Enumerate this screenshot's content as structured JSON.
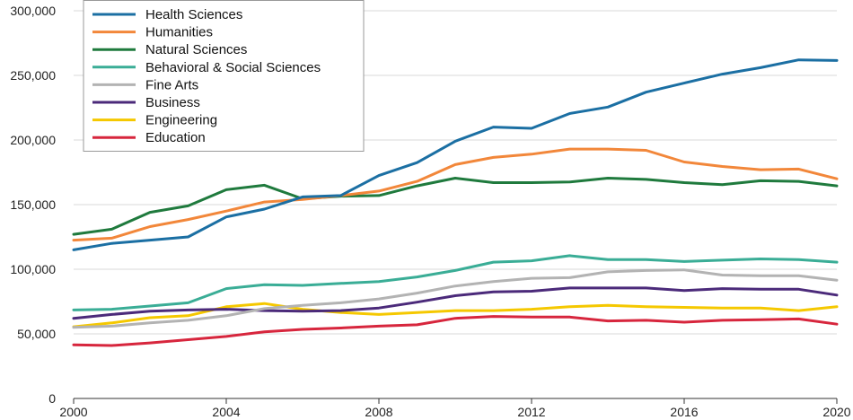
{
  "chart_data": {
    "type": "line",
    "title": "",
    "xlabel": "",
    "ylabel": "",
    "x": [
      2000,
      2001,
      2002,
      2003,
      2004,
      2005,
      2006,
      2007,
      2008,
      2009,
      2010,
      2011,
      2012,
      2013,
      2014,
      2015,
      2016,
      2017,
      2018,
      2019,
      2020
    ],
    "xlim": [
      2000,
      2020
    ],
    "ylim": [
      0,
      300000
    ],
    "x_ticks": [
      2000,
      2004,
      2008,
      2012,
      2016,
      2020
    ],
    "x_tick_labels": [
      "2000",
      "2004",
      "2008",
      "2012",
      "2016",
      "2020"
    ],
    "y_ticks": [
      0,
      50000,
      100000,
      150000,
      200000,
      250000,
      300000
    ],
    "y_tick_labels": [
      "0",
      "50,000",
      "100,000",
      "150,000",
      "200,000",
      "250,000",
      "300,000"
    ],
    "grid": "horizontal",
    "legend_position": "top-left",
    "series": [
      {
        "name": "Health Sciences",
        "color": "#1b6fa3",
        "values": [
          115000,
          120000,
          122500,
          125000,
          140500,
          146500,
          156000,
          157000,
          172500,
          182500,
          199000,
          210000,
          209000,
          220500,
          225500,
          237000,
          244000,
          251000,
          256000,
          262000,
          261500
        ]
      },
      {
        "name": "Humanities",
        "color": "#f2873a",
        "values": [
          122500,
          124000,
          133000,
          138500,
          145000,
          152000,
          154000,
          157000,
          160500,
          168000,
          181000,
          186500,
          189000,
          193000,
          193000,
          192000,
          183000,
          179500,
          177000,
          177500,
          170000
        ]
      },
      {
        "name": "Natural Sciences",
        "color": "#1f7a3d",
        "values": [
          127000,
          131000,
          144000,
          149000,
          161500,
          165000,
          154500,
          156500,
          157000,
          164500,
          170500,
          167000,
          167000,
          167500,
          170500,
          169500,
          167000,
          165500,
          168500,
          168000,
          164500
        ]
      },
      {
        "name": "Behavioral & Social Sciences",
        "color": "#3aad96",
        "values": [
          68500,
          69000,
          71500,
          74000,
          85000,
          88000,
          87500,
          89000,
          90500,
          94000,
          99000,
          105500,
          106500,
          110500,
          107500,
          107500,
          106000,
          107000,
          108000,
          107500,
          105500
        ]
      },
      {
        "name": "Fine Arts",
        "color": "#b3b3b3",
        "values": [
          55000,
          56000,
          58500,
          60500,
          64000,
          69500,
          72000,
          74000,
          77000,
          81500,
          87000,
          90500,
          93000,
          93500,
          98000,
          99000,
          99500,
          95500,
          95000,
          95000,
          91500
        ]
      },
      {
        "name": "Business",
        "color": "#4b2a7a",
        "values": [
          62000,
          65000,
          67500,
          68500,
          69000,
          68000,
          67500,
          68000,
          70000,
          74500,
          79500,
          82500,
          83000,
          85500,
          85500,
          85500,
          83500,
          85000,
          84500,
          84500,
          80000
        ]
      },
      {
        "name": "Engineering",
        "color": "#f5c800",
        "values": [
          55500,
          58500,
          62500,
          64000,
          71000,
          73500,
          69000,
          66500,
          65000,
          66500,
          68000,
          68000,
          69000,
          71000,
          72000,
          71000,
          70500,
          70000,
          70000,
          68000,
          71000
        ]
      },
      {
        "name": "Education",
        "color": "#d7263d",
        "values": [
          41500,
          41000,
          43000,
          45500,
          48000,
          51500,
          53500,
          54500,
          56000,
          57000,
          62000,
          63500,
          63000,
          63000,
          60000,
          60500,
          59000,
          60500,
          61000,
          61500,
          57500
        ]
      }
    ]
  }
}
